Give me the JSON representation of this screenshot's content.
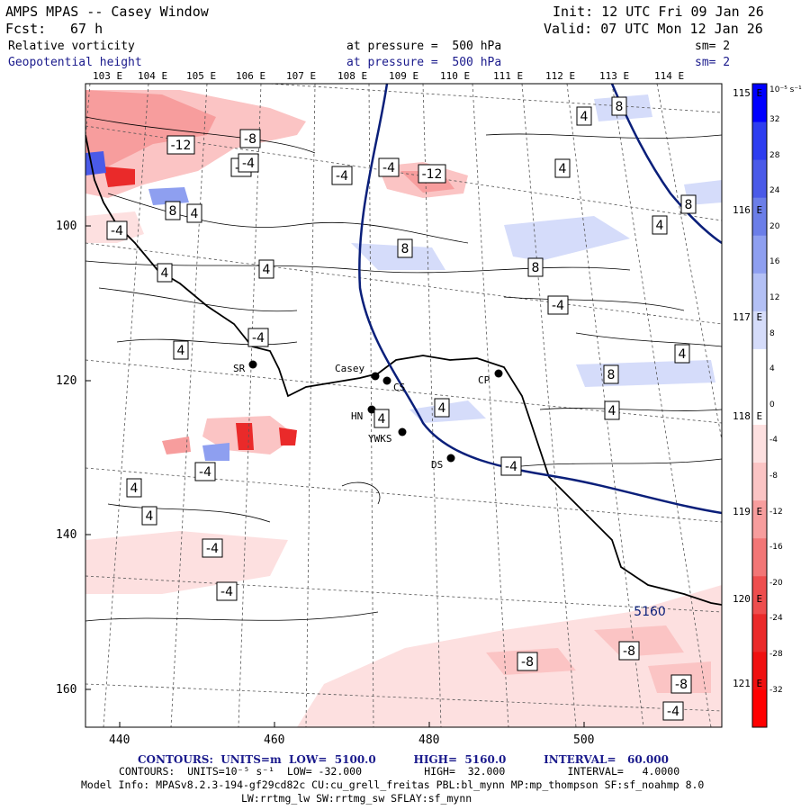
{
  "header": {
    "title": "AMPS MPAS -- Casey Window",
    "fcst_label": "Fcst:",
    "fcst_value": "67 h",
    "init": "Init: 12 UTC Fri 09 Jan 26",
    "valid": "Valid: 07 UTC Mon 12 Jan 26",
    "field1_name": "Relative vorticity",
    "field1_pressure": "at pressure =  500 hPa",
    "field1_sm": "sm= 2",
    "field2_name": "Geopotential height",
    "field2_pressure": "at pressure =  500 hPa",
    "field2_sm": "sm= 2"
  },
  "axes": {
    "lon_top": [
      "103 E",
      "104 E",
      "105 E",
      "106 E",
      "107 E",
      "108 E",
      "109 E",
      "110 E",
      "111 E",
      "112 E",
      "113 E",
      "114 E"
    ],
    "lon_right": [
      "115 E",
      "116 E",
      "117 E",
      "118 E",
      "119 E",
      "120 E",
      "121 E"
    ],
    "y_ticks": [
      "100",
      "120",
      "140",
      "160"
    ],
    "x_ticks": [
      "440",
      "460",
      "480",
      "500"
    ]
  },
  "colorbar": {
    "unit": "10⁻⁵ s⁻¹",
    "labels": [
      "32",
      "28",
      "24",
      "20",
      "16",
      "12",
      "8",
      "4",
      "0",
      "-4",
      "-8",
      "-12",
      "-16",
      "-20",
      "-24",
      "-28",
      "-32"
    ],
    "colors": [
      "#0000ff",
      "#2d3df0",
      "#4a5ae8",
      "#6b7ee8",
      "#8e9ff0",
      "#b3c0f5",
      "#d5dcfa",
      "#ffffff",
      "#ffffff",
      "#fde0e0",
      "#fbc4c4",
      "#f79d9d",
      "#f27676",
      "#ee4e4e",
      "#ea2a2a",
      "#f01010",
      "#ff0000"
    ]
  },
  "stations": [
    {
      "name": "Casey"
    },
    {
      "name": "CS"
    },
    {
      "name": "SR"
    },
    {
      "name": "HN"
    },
    {
      "name": "YWKS"
    },
    {
      "name": "DS"
    },
    {
      "name": "CP"
    }
  ],
  "contour_labels": [
    "-12",
    "-8",
    "-8",
    "-4",
    "-4",
    "-12",
    "-4",
    "8",
    "4",
    "-4",
    "4",
    "8",
    "4",
    "4",
    "4",
    "8",
    "8",
    "4",
    "8",
    "-4",
    "4",
    "-4",
    "4",
    "8",
    "4",
    "4",
    "4",
    "-4",
    "-4",
    "4",
    "-4",
    "4",
    "-4",
    "-8",
    "-8",
    "-8",
    "-4",
    "5160"
  ],
  "footer": {
    "line1": "CONTOURS:  UNITS=m  LOW=  5100.0          HIGH=  5160.0          INTERVAL=   60.000",
    "line2": "CONTOURS:  UNITS=10⁻⁵ s⁻¹  LOW= -32.000          HIGH=  32.000          INTERVAL=   4.0000",
    "line3": "Model Info: MPASv8.2.3-194-gf29cd82c CU:cu_grell_freitas PBL:bl_mynn MP:mp_thompson SF:sf_noahmp 8.0",
    "line4": "LW:rrtmg_lw SW:rrtmg_sw SFLAY:sf_mynn"
  }
}
